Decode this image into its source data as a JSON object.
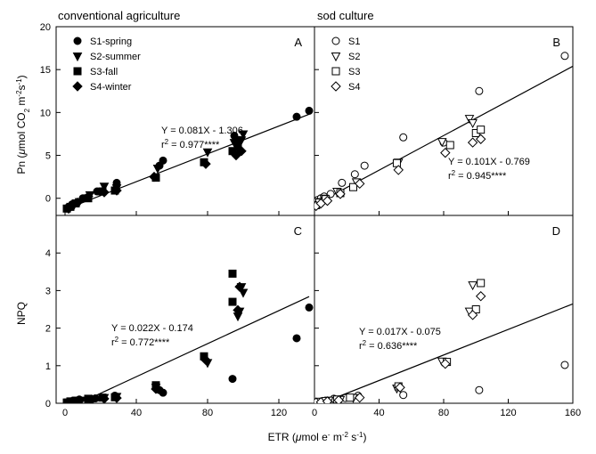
{
  "chart_data": {
    "type": "scatter",
    "shared_x_axis": {
      "label_prefix": "ETR (",
      "label_mu": "μ",
      "label_mol": "mol e",
      "label_minus": "-",
      "label_m": " m",
      "label_m_exp": "-2",
      "label_s": " s",
      "label_s_exp": "-1",
      "label_close": ")",
      "ticks_left": [
        "0",
        "40",
        "80",
        "120"
      ],
      "ticks_right": [
        "0",
        "40",
        "80",
        "120",
        "160"
      ],
      "xlim_left": [
        -5,
        140
      ],
      "xlim_right": [
        0,
        160
      ]
    },
    "column_titles": [
      "conventional agriculture",
      "sod culture"
    ],
    "row_y_axes": [
      {
        "label_prefix": "Pn (",
        "label_mu": "μ",
        "label_mol": "mol CO",
        "label_sub2": "2",
        "label_m": " m",
        "label_m_exp": "-2",
        "label_s": "s",
        "label_s_exp": "-1",
        "label_close": ")",
        "ylim": [
          -2,
          20
        ],
        "ticks": [
          "0",
          "5",
          "10",
          "15",
          "20"
        ]
      },
      {
        "label": "NPQ",
        "ylim": [
          0,
          5
        ],
        "ticks": [
          "0",
          "1",
          "2",
          "3",
          "4"
        ]
      }
    ],
    "panels": [
      {
        "letter": "A",
        "col": 0,
        "row": 0,
        "legend": {
          "placement": "top-left",
          "entries": [
            {
              "name": "S1-spring",
              "marker": "circle-filled"
            },
            {
              "name": "S2-summer",
              "marker": "triangle-down-filled"
            },
            {
              "name": "S3-fall",
              "marker": "square-filled"
            },
            {
              "name": "S4-winter",
              "marker": "diamond-filled"
            }
          ]
        },
        "equation": "Y = 0.081X - 1.306",
        "r2_prefix": "r",
        "r2_exp": "2",
        "r2_value": " = 0.977****",
        "fit": {
          "slope": 0.081,
          "intercept": -1.306,
          "x_range": [
            0,
            138
          ]
        },
        "series": [
          {
            "name": "S1-spring",
            "marker": "circle-filled",
            "points": [
              [
                1,
                -1.2
              ],
              [
                2,
                -1.0
              ],
              [
                4,
                -0.7
              ],
              [
                6,
                -0.6
              ],
              [
                10,
                0.0
              ],
              [
                18,
                0.8
              ],
              [
                29,
                1.8
              ],
              [
                53,
                3.8
              ],
              [
                55,
                4.4
              ],
              [
                95,
                7.3
              ],
              [
                98,
                6.8
              ],
              [
                130,
                9.5
              ],
              [
                137,
                10.2
              ]
            ]
          },
          {
            "name": "S2-summer",
            "marker": "triangle-down-filled",
            "points": [
              [
                2,
                -1.2
              ],
              [
                5,
                -0.8
              ],
              [
                8,
                -0.4
              ],
              [
                14,
                0.4
              ],
              [
                22,
                1.4
              ],
              [
                29,
                1.2
              ],
              [
                52,
                3.5
              ],
              [
                80,
                5.4
              ],
              [
                95,
                6.5
              ],
              [
                99,
                6.8
              ],
              [
                100,
                7.5
              ]
            ]
          },
          {
            "name": "S3-fall",
            "marker": "square-filled",
            "points": [
              [
                1,
                -1.2
              ],
              [
                3,
                -1.0
              ],
              [
                6,
                -0.6
              ],
              [
                13,
                0.0
              ],
              [
                21,
                0.8
              ],
              [
                28,
                0.9
              ],
              [
                51,
                2.4
              ],
              [
                78,
                4.2
              ],
              [
                94,
                5.5
              ],
              [
                97,
                6.0
              ]
            ]
          },
          {
            "name": "S4-winter",
            "marker": "diamond-filled",
            "points": [
              [
                2,
                -1.2
              ],
              [
                4,
                -0.8
              ],
              [
                7,
                -0.5
              ],
              [
                13,
                0.2
              ],
              [
                22,
                0.7
              ],
              [
                29,
                0.9
              ],
              [
                50,
                2.5
              ],
              [
                79,
                4.0
              ],
              [
                96,
                5.0
              ],
              [
                99,
                5.5
              ]
            ]
          }
        ]
      },
      {
        "letter": "B",
        "col": 1,
        "row": 0,
        "legend": {
          "placement": "top-left",
          "entries": [
            {
              "name": "S1",
              "marker": "circle-open"
            },
            {
              "name": "S2",
              "marker": "triangle-down-open"
            },
            {
              "name": "S3",
              "marker": "square-open"
            },
            {
              "name": "S4",
              "marker": "diamond-open"
            }
          ]
        },
        "equation": "Y = 0.101X - 0.769",
        "r2_prefix": "r",
        "r2_exp": "2",
        "r2_value": " = 0.945****",
        "fit": {
          "slope": 0.101,
          "intercept": -0.769,
          "x_range": [
            0,
            160
          ]
        },
        "series": [
          {
            "name": "S1",
            "marker": "circle-open",
            "points": [
              [
                2,
                -0.2
              ],
              [
                4,
                0.0
              ],
              [
                6,
                0.2
              ],
              [
                10,
                0.5
              ],
              [
                17,
                1.8
              ],
              [
                25,
                2.8
              ],
              [
                31,
                3.8
              ],
              [
                55,
                7.1
              ],
              [
                80,
                6.5
              ],
              [
                102,
                12.5
              ],
              [
                155,
                16.6
              ]
            ]
          },
          {
            "name": "S2",
            "marker": "triangle-down-open",
            "points": [
              [
                1,
                -0.8
              ],
              [
                3,
                -0.4
              ],
              [
                6,
                0.0
              ],
              [
                14,
                0.8
              ],
              [
                26,
                1.9
              ],
              [
                52,
                4.2
              ],
              [
                79,
                6.6
              ],
              [
                96,
                9.3
              ],
              [
                98,
                8.8
              ]
            ]
          },
          {
            "name": "S3",
            "marker": "square-open",
            "points": [
              [
                1,
                -0.8
              ],
              [
                3,
                -0.5
              ],
              [
                7,
                -0.1
              ],
              [
                16,
                0.6
              ],
              [
                24,
                1.3
              ],
              [
                51,
                4.1
              ],
              [
                84,
                6.2
              ],
              [
                100,
                7.6
              ],
              [
                103,
                8.0
              ]
            ]
          },
          {
            "name": "S4",
            "marker": "diamond-open",
            "points": [
              [
                1,
                -0.9
              ],
              [
                4,
                -0.6
              ],
              [
                8,
                -0.3
              ],
              [
                16,
                0.5
              ],
              [
                28,
                1.7
              ],
              [
                52,
                3.3
              ],
              [
                81,
                5.3
              ],
              [
                98,
                6.5
              ],
              [
                103,
                6.9
              ]
            ]
          }
        ]
      },
      {
        "letter": "C",
        "col": 0,
        "row": 1,
        "equation": "Y = 0.022X - 0.174",
        "r2_prefix": "r",
        "r2_exp": "2",
        "r2_value": " = 0.772****",
        "fit": {
          "slope": 0.022,
          "intercept": -0.174,
          "x_range": [
            8,
            137
          ]
        },
        "series": [
          {
            "name": "S1-spring",
            "marker": "circle-filled",
            "points": [
              [
                1,
                0.02
              ],
              [
                2,
                0.03
              ],
              [
                4,
                0.06
              ],
              [
                8,
                0.1
              ],
              [
                17,
                0.13
              ],
              [
                28,
                0.2
              ],
              [
                53,
                0.35
              ],
              [
                55,
                0.28
              ],
              [
                94,
                0.65
              ],
              [
                130,
                1.73
              ],
              [
                137,
                2.55
              ]
            ]
          },
          {
            "name": "S2-summer",
            "marker": "triangle-down-filled",
            "points": [
              [
                2,
                0.03
              ],
              [
                5,
                0.05
              ],
              [
                9,
                0.08
              ],
              [
                15,
                0.1
              ],
              [
                22,
                0.15
              ],
              [
                29,
                0.18
              ],
              [
                51,
                0.42
              ],
              [
                80,
                1.08
              ],
              [
                97,
                2.32
              ],
              [
                98,
                2.45
              ],
              [
                99,
                3.1
              ],
              [
                100,
                2.95
              ]
            ]
          },
          {
            "name": "S3-fall",
            "marker": "square-filled",
            "points": [
              [
                1,
                0.02
              ],
              [
                3,
                0.05
              ],
              [
                6,
                0.07
              ],
              [
                13,
                0.12
              ],
              [
                21,
                0.15
              ],
              [
                28,
                0.16
              ],
              [
                51,
                0.48
              ],
              [
                78,
                1.25
              ],
              [
                94,
                3.45
              ],
              [
                94,
                2.7
              ]
            ]
          },
          {
            "name": "S4-winter",
            "marker": "diamond-filled",
            "points": [
              [
                2,
                0.02
              ],
              [
                4,
                0.04
              ],
              [
                8,
                0.07
              ],
              [
                15,
                0.1
              ],
              [
                22,
                0.12
              ],
              [
                29,
                0.14
              ],
              [
                51,
                0.38
              ],
              [
                79,
                1.15
              ],
              [
                97,
                2.48
              ],
              [
                98,
                3.1
              ]
            ]
          }
        ]
      },
      {
        "letter": "D",
        "col": 1,
        "row": 1,
        "equation": "Y = 0.017X - 0.075",
        "r2_prefix": "r",
        "r2_exp": "2",
        "r2_value": " = 0.636****",
        "fit": {
          "slope": 0.017,
          "intercept": -0.075,
          "x_range": [
            4,
            160
          ]
        },
        "series": [
          {
            "name": "S1",
            "marker": "circle-open",
            "points": [
              [
                2,
                0.02
              ],
              [
                4,
                0.04
              ],
              [
                7,
                0.06
              ],
              [
                12,
                0.12
              ],
              [
                19,
                0.14
              ],
              [
                27,
                0.2
              ],
              [
                55,
                0.22
              ],
              [
                102,
                0.35
              ],
              [
                155,
                1.02
              ]
            ]
          },
          {
            "name": "S2",
            "marker": "triangle-down-open",
            "points": [
              [
                2,
                0.02
              ],
              [
                5,
                0.04
              ],
              [
                9,
                0.08
              ],
              [
                16,
                0.1
              ],
              [
                24,
                0.15
              ],
              [
                51,
                0.4
              ],
              [
                79,
                1.12
              ],
              [
                96,
                2.45
              ],
              [
                98,
                3.15
              ]
            ]
          },
          {
            "name": "S3",
            "marker": "square-open",
            "points": [
              [
                1,
                0.02
              ],
              [
                3,
                0.04
              ],
              [
                7,
                0.06
              ],
              [
                14,
                0.1
              ],
              [
                22,
                0.15
              ],
              [
                52,
                0.45
              ],
              [
                82,
                1.1
              ],
              [
                100,
                2.5
              ],
              [
                103,
                3.2
              ]
            ]
          },
          {
            "name": "S4",
            "marker": "diamond-open",
            "points": [
              [
                1,
                0.02
              ],
              [
                4,
                0.03
              ],
              [
                8,
                0.05
              ],
              [
                15,
                0.08
              ],
              [
                28,
                0.15
              ],
              [
                53,
                0.42
              ],
              [
                81,
                1.05
              ],
              [
                98,
                2.35
              ],
              [
                103,
                2.85
              ]
            ]
          }
        ]
      }
    ]
  }
}
